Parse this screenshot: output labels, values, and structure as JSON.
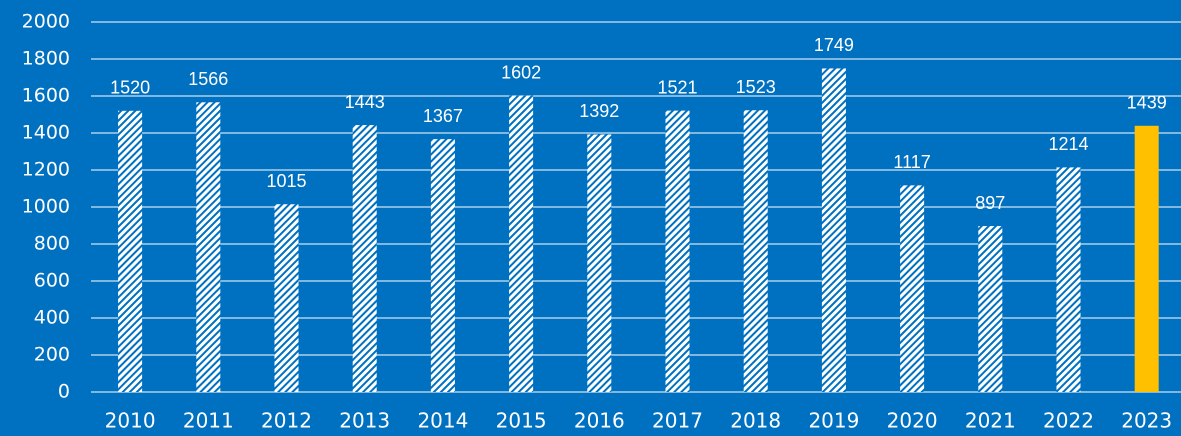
{
  "chart_data": {
    "type": "bar",
    "categories": [
      "2010",
      "2011",
      "2012",
      "2013",
      "2014",
      "2015",
      "2016",
      "2017",
      "2018",
      "2019",
      "2020",
      "2021",
      "2022",
      "2023"
    ],
    "values": [
      1520,
      1566,
      1015,
      1443,
      1367,
      1602,
      1392,
      1521,
      1523,
      1749,
      1117,
      897,
      1214,
      1439
    ],
    "colors": [
      "#ffffff",
      "#ffffff",
      "#ffffff",
      "#ffffff",
      "#ffffff",
      "#ffffff",
      "#ffffff",
      "#ffffff",
      "#ffffff",
      "#ffffff",
      "#ffffff",
      "#ffffff",
      "#ffffff",
      "#ffc000"
    ],
    "hatched": [
      true,
      true,
      true,
      true,
      true,
      true,
      true,
      true,
      true,
      true,
      true,
      true,
      true,
      false
    ],
    "ylim": [
      0,
      2000
    ],
    "yticks": [
      0,
      200,
      400,
      600,
      800,
      1000,
      1200,
      1400,
      1600,
      1800,
      2000
    ],
    "grid": true
  }
}
